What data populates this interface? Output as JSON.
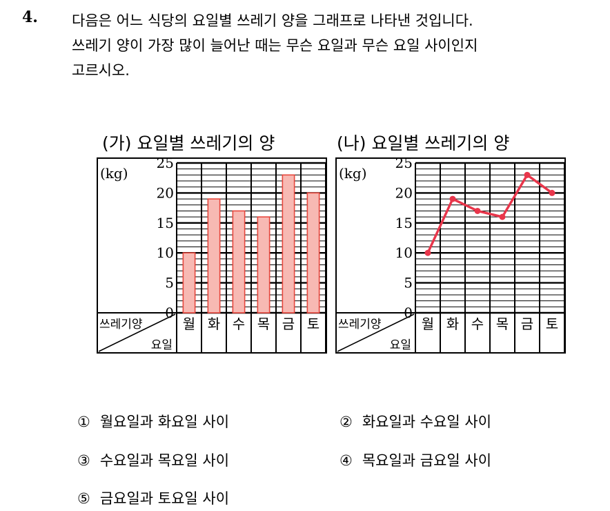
{
  "question": {
    "number": "4.",
    "lines": [
      "다음은 어느 식당의 요일별 쓰레기 양을 그래프로 나타낸 것입니다.",
      "쓰레기 양이 가장 많이 늘어난 때는 무슨 요일과 무슨 요일 사이인지",
      "고르시오."
    ]
  },
  "chart_data": [
    {
      "type": "bar",
      "title": "(가) 요일별 쓰레기의 양",
      "unit_label": "(kg)",
      "corner_top": "쓰레기양",
      "corner_bottom": "요일",
      "categories": [
        "월",
        "화",
        "수",
        "목",
        "금",
        "토"
      ],
      "values": [
        10,
        19,
        17,
        16,
        23,
        20
      ],
      "yticks": [
        0,
        5,
        10,
        15,
        20,
        25
      ],
      "ylim": [
        0,
        25
      ],
      "grid": true,
      "bar_color": "#f7b9b3",
      "bar_stroke": "#e8463c"
    },
    {
      "type": "line",
      "title": "(나) 요일별 쓰레기의 양",
      "unit_label": "(kg)",
      "corner_top": "쓰레기양",
      "corner_bottom": "요일",
      "categories": [
        "월",
        "화",
        "수",
        "목",
        "금",
        "토"
      ],
      "values": [
        10,
        19,
        17,
        16,
        23,
        20
      ],
      "yticks": [
        0,
        5,
        10,
        15,
        20,
        25
      ],
      "ylim": [
        0,
        25
      ],
      "grid": true,
      "line_color": "#e8364b"
    }
  ],
  "options": [
    {
      "marker": "①",
      "text": "월요일과 화요일 사이"
    },
    {
      "marker": "②",
      "text": "화요일과 수요일 사이"
    },
    {
      "marker": "③",
      "text": "수요일과 목요일 사이"
    },
    {
      "marker": "④",
      "text": "목요일과 금요일 사이"
    },
    {
      "marker": "⑤",
      "text": "금요일과 토요일 사이"
    }
  ]
}
